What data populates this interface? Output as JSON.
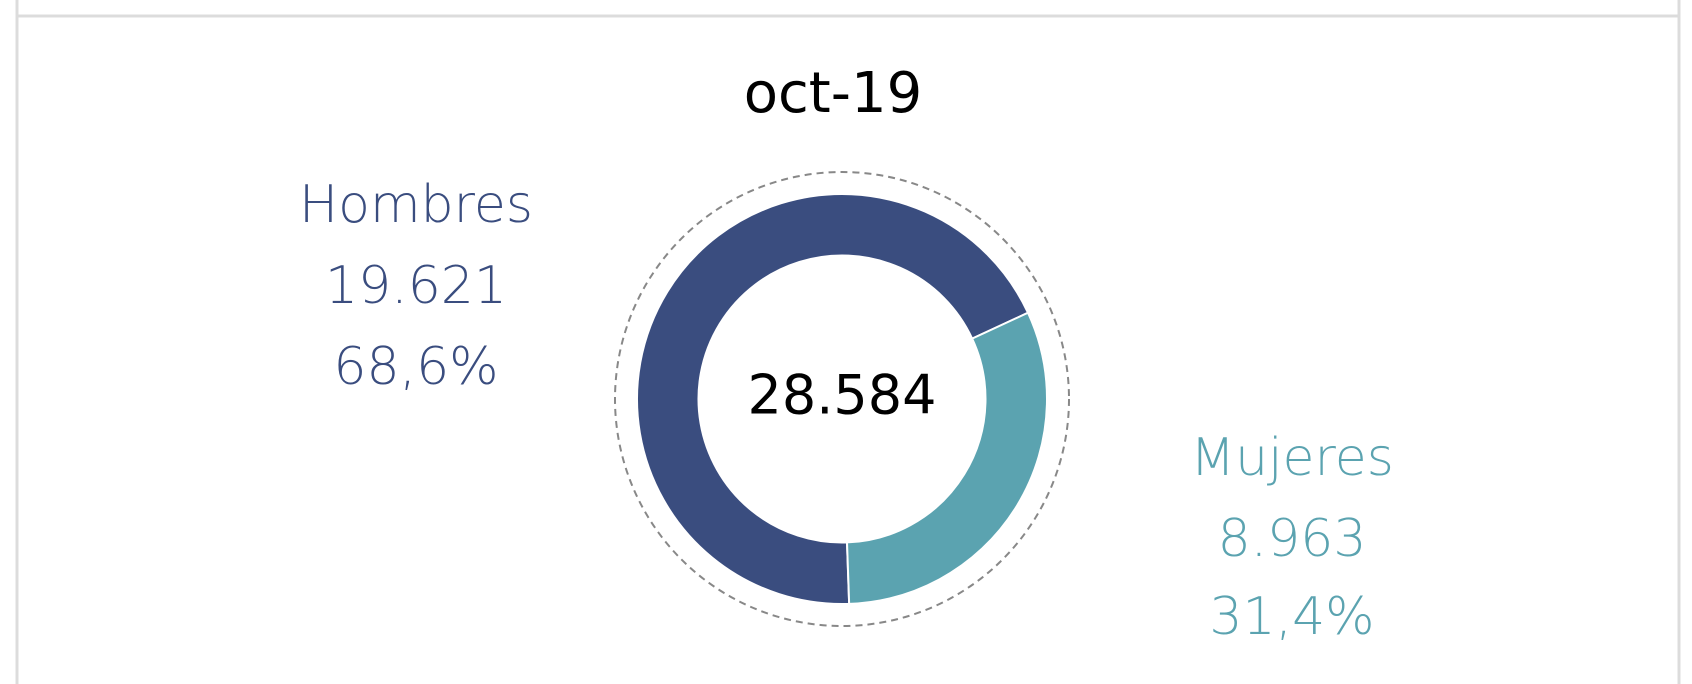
{
  "chart_data": {
    "type": "donut",
    "title": "oct-19",
    "total": 28584,
    "total_label": "28.584",
    "categories": [
      "Hombres",
      "Mujeres"
    ],
    "values": [
      19621,
      8963
    ],
    "value_labels": [
      "19.621",
      "8.963"
    ],
    "percents": [
      68.6,
      31.4
    ],
    "percent_labels": [
      "68,6%",
      "31,4%"
    ],
    "colors": [
      "#3a4d7f",
      "#5ba3b0"
    ]
  }
}
